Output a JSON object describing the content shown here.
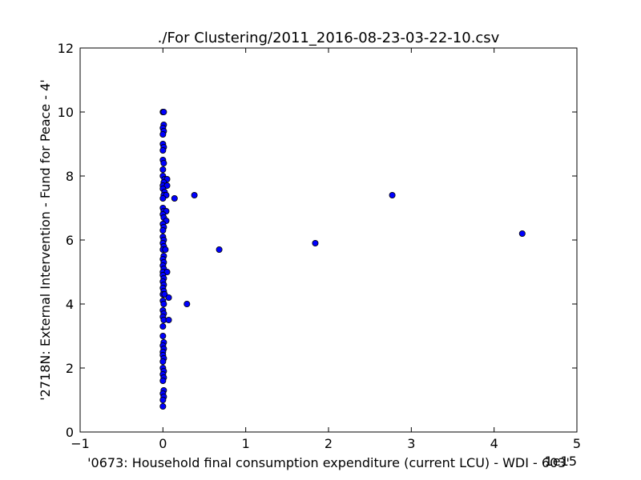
{
  "chart_data": {
    "type": "scatter",
    "title": "./For Clustering/2011_2016-08-23-03-22-10.csv",
    "xlabel": "'0673: Household final consumption expenditure  (current LCU) - WDI - 603'",
    "ylabel": "'2718N: External Intervention - Fund for Peace - 4'",
    "x_offset_label": "1e15",
    "xlim": [
      -1,
      5
    ],
    "ylim": [
      0,
      12
    ],
    "xticks": [
      "−1",
      "0",
      "1",
      "2",
      "3",
      "4",
      "5"
    ],
    "yticks": [
      "0",
      "2",
      "4",
      "6",
      "8",
      "10",
      "12"
    ],
    "grid": false,
    "marker_color": "#0000ff",
    "marker_edge_color": "#000000",
    "points": [
      {
        "x": 0.0,
        "y": 10.0
      },
      {
        "x": 0.01,
        "y": 10.0
      },
      {
        "x": 0.01,
        "y": 9.6
      },
      {
        "x": 0.0,
        "y": 9.5
      },
      {
        "x": 0.01,
        "y": 9.4
      },
      {
        "x": 0.0,
        "y": 9.3
      },
      {
        "x": 0.0,
        "y": 9.0
      },
      {
        "x": 0.01,
        "y": 8.9
      },
      {
        "x": 0.0,
        "y": 8.8
      },
      {
        "x": 0.0,
        "y": 8.5
      },
      {
        "x": 0.01,
        "y": 8.4
      },
      {
        "x": 0.0,
        "y": 8.2
      },
      {
        "x": 0.0,
        "y": 8.0
      },
      {
        "x": 0.02,
        "y": 7.9
      },
      {
        "x": 0.05,
        "y": 7.9
      },
      {
        "x": 0.01,
        "y": 7.8
      },
      {
        "x": 0.0,
        "y": 7.7
      },
      {
        "x": 0.05,
        "y": 7.7
      },
      {
        "x": 0.0,
        "y": 7.6
      },
      {
        "x": 0.02,
        "y": 7.5
      },
      {
        "x": 0.01,
        "y": 7.4
      },
      {
        "x": 0.04,
        "y": 7.4
      },
      {
        "x": 0.0,
        "y": 7.3
      },
      {
        "x": 0.14,
        "y": 7.3
      },
      {
        "x": 0.38,
        "y": 7.4
      },
      {
        "x": 2.77,
        "y": 7.4
      },
      {
        "x": 0.0,
        "y": 7.0
      },
      {
        "x": 0.01,
        "y": 6.9
      },
      {
        "x": 0.04,
        "y": 6.9
      },
      {
        "x": 0.0,
        "y": 6.8
      },
      {
        "x": 0.01,
        "y": 6.7
      },
      {
        "x": 0.04,
        "y": 6.6
      },
      {
        "x": 0.0,
        "y": 6.5
      },
      {
        "x": 0.01,
        "y": 6.4
      },
      {
        "x": 0.0,
        "y": 6.3
      },
      {
        "x": 4.34,
        "y": 6.2
      },
      {
        "x": 0.0,
        "y": 6.1
      },
      {
        "x": 0.01,
        "y": 6.0
      },
      {
        "x": 0.0,
        "y": 5.9
      },
      {
        "x": 0.01,
        "y": 5.8
      },
      {
        "x": 1.84,
        "y": 5.9
      },
      {
        "x": 0.0,
        "y": 5.7
      },
      {
        "x": 0.03,
        "y": 5.7
      },
      {
        "x": 0.68,
        "y": 5.7
      },
      {
        "x": 0.01,
        "y": 5.5
      },
      {
        "x": 0.0,
        "y": 5.4
      },
      {
        "x": 0.01,
        "y": 5.3
      },
      {
        "x": 0.0,
        "y": 5.2
      },
      {
        "x": 0.01,
        "y": 5.1
      },
      {
        "x": 0.0,
        "y": 5.0
      },
      {
        "x": 0.05,
        "y": 5.0
      },
      {
        "x": 0.0,
        "y": 4.9
      },
      {
        "x": 0.01,
        "y": 4.8
      },
      {
        "x": 0.0,
        "y": 4.7
      },
      {
        "x": 0.01,
        "y": 4.6
      },
      {
        "x": 0.0,
        "y": 4.5
      },
      {
        "x": 0.01,
        "y": 4.4
      },
      {
        "x": 0.0,
        "y": 4.3
      },
      {
        "x": 0.02,
        "y": 4.3
      },
      {
        "x": 0.07,
        "y": 4.2
      },
      {
        "x": 0.0,
        "y": 4.1
      },
      {
        "x": 0.01,
        "y": 4.0
      },
      {
        "x": 0.29,
        "y": 4.0
      },
      {
        "x": 0.0,
        "y": 3.8
      },
      {
        "x": 0.01,
        "y": 3.7
      },
      {
        "x": 0.0,
        "y": 3.6
      },
      {
        "x": 0.01,
        "y": 3.5
      },
      {
        "x": 0.07,
        "y": 3.5
      },
      {
        "x": 0.0,
        "y": 3.3
      },
      {
        "x": 0.0,
        "y": 3.0
      },
      {
        "x": 0.01,
        "y": 2.8
      },
      {
        "x": 0.0,
        "y": 2.7
      },
      {
        "x": 0.01,
        "y": 2.6
      },
      {
        "x": 0.0,
        "y": 2.5
      },
      {
        "x": 0.0,
        "y": 2.4
      },
      {
        "x": 0.01,
        "y": 2.3
      },
      {
        "x": 0.0,
        "y": 2.2
      },
      {
        "x": 0.0,
        "y": 2.0
      },
      {
        "x": 0.01,
        "y": 1.9
      },
      {
        "x": 0.0,
        "y": 1.8
      },
      {
        "x": 0.01,
        "y": 1.7
      },
      {
        "x": 0.0,
        "y": 1.6
      },
      {
        "x": 0.01,
        "y": 1.3
      },
      {
        "x": 0.0,
        "y": 1.2
      },
      {
        "x": 0.01,
        "y": 1.1
      },
      {
        "x": 0.0,
        "y": 1.0
      },
      {
        "x": 0.0,
        "y": 0.8
      }
    ]
  }
}
